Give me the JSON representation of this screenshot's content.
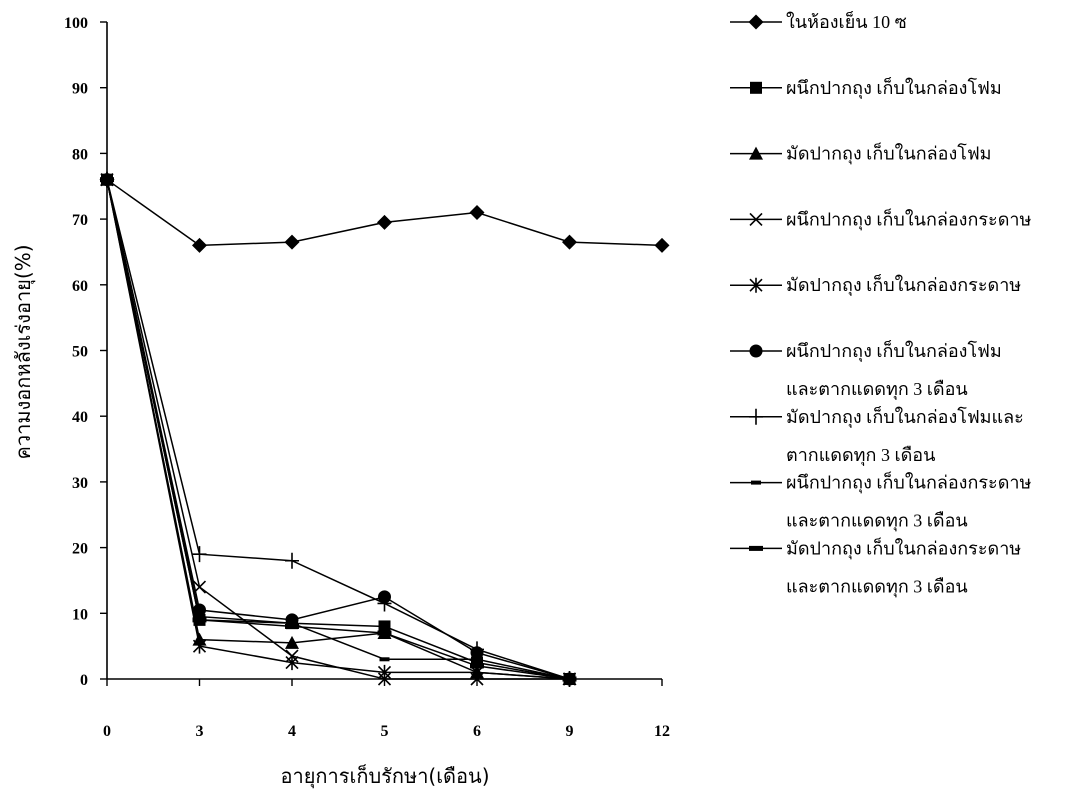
{
  "chart_data": {
    "type": "line",
    "categories": [
      "0",
      "3",
      "4",
      "5",
      "6",
      "9",
      "12"
    ],
    "xlabel": "อายุการเก็บรักษา(เดือน)",
    "ylabel": "ความงอกหลังเร่งอายุ(%)",
    "ylim": [
      0,
      100
    ],
    "yticks": [
      0,
      10,
      20,
      30,
      40,
      50,
      60,
      70,
      80,
      90,
      100
    ],
    "grid": false,
    "legend": "right",
    "color": "#000000",
    "series": [
      {
        "name": [
          "ในห้องเย็น 10 ซ"
        ],
        "marker": "diamond",
        "values": [
          76,
          66,
          66.5,
          69.5,
          71,
          66.5,
          66
        ]
      },
      {
        "name": [
          "ผนึกปากถุง เก็บในกล่องโฟม"
        ],
        "marker": "square",
        "values": [
          76,
          9,
          8.5,
          8,
          2.5,
          0,
          null
        ]
      },
      {
        "name": [
          "มัดปากถุง เก็บในกล่องโฟม"
        ],
        "marker": "triangle",
        "values": [
          76,
          6,
          5.5,
          7,
          1,
          0,
          null
        ]
      },
      {
        "name": [
          "ผนึกปากถุง เก็บในกล่องกระดาษ"
        ],
        "marker": "x",
        "values": [
          76,
          14,
          3.5,
          0,
          0,
          0,
          null
        ]
      },
      {
        "name": [
          "มัดปากถุง เก็บในกล่องกระดาษ"
        ],
        "marker": "asterisk",
        "values": [
          76,
          5,
          2.5,
          1,
          1,
          0,
          null
        ]
      },
      {
        "name": [
          "ผนึกปากถุง เก็บในกล่องโฟม",
          "และตากแดดทุก 3 เดือน"
        ],
        "marker": "circle",
        "values": [
          76,
          10.5,
          9,
          12.5,
          4,
          0,
          null
        ]
      },
      {
        "name": [
          "มัดปากถุง เก็บในกล่องโฟมและ",
          "ตากแดดทุก 3 เดือน"
        ],
        "marker": "plus",
        "values": [
          76,
          19,
          18,
          11.5,
          4.5,
          0,
          null
        ]
      },
      {
        "name": [
          "ผนึกปากถุง เก็บในกล่องกระดาษ",
          "และตากแดดทุก 3 เดือน"
        ],
        "marker": "short-dash",
        "values": [
          76,
          9.5,
          8.5,
          3,
          3,
          0,
          null
        ]
      },
      {
        "name": [
          "มัดปากถุง เก็บในกล่องกระดาษ",
          "และตากแดดทุก 3 เดือน"
        ],
        "marker": "dash",
        "values": [
          76,
          9,
          8,
          7,
          2,
          0,
          null
        ]
      }
    ]
  }
}
